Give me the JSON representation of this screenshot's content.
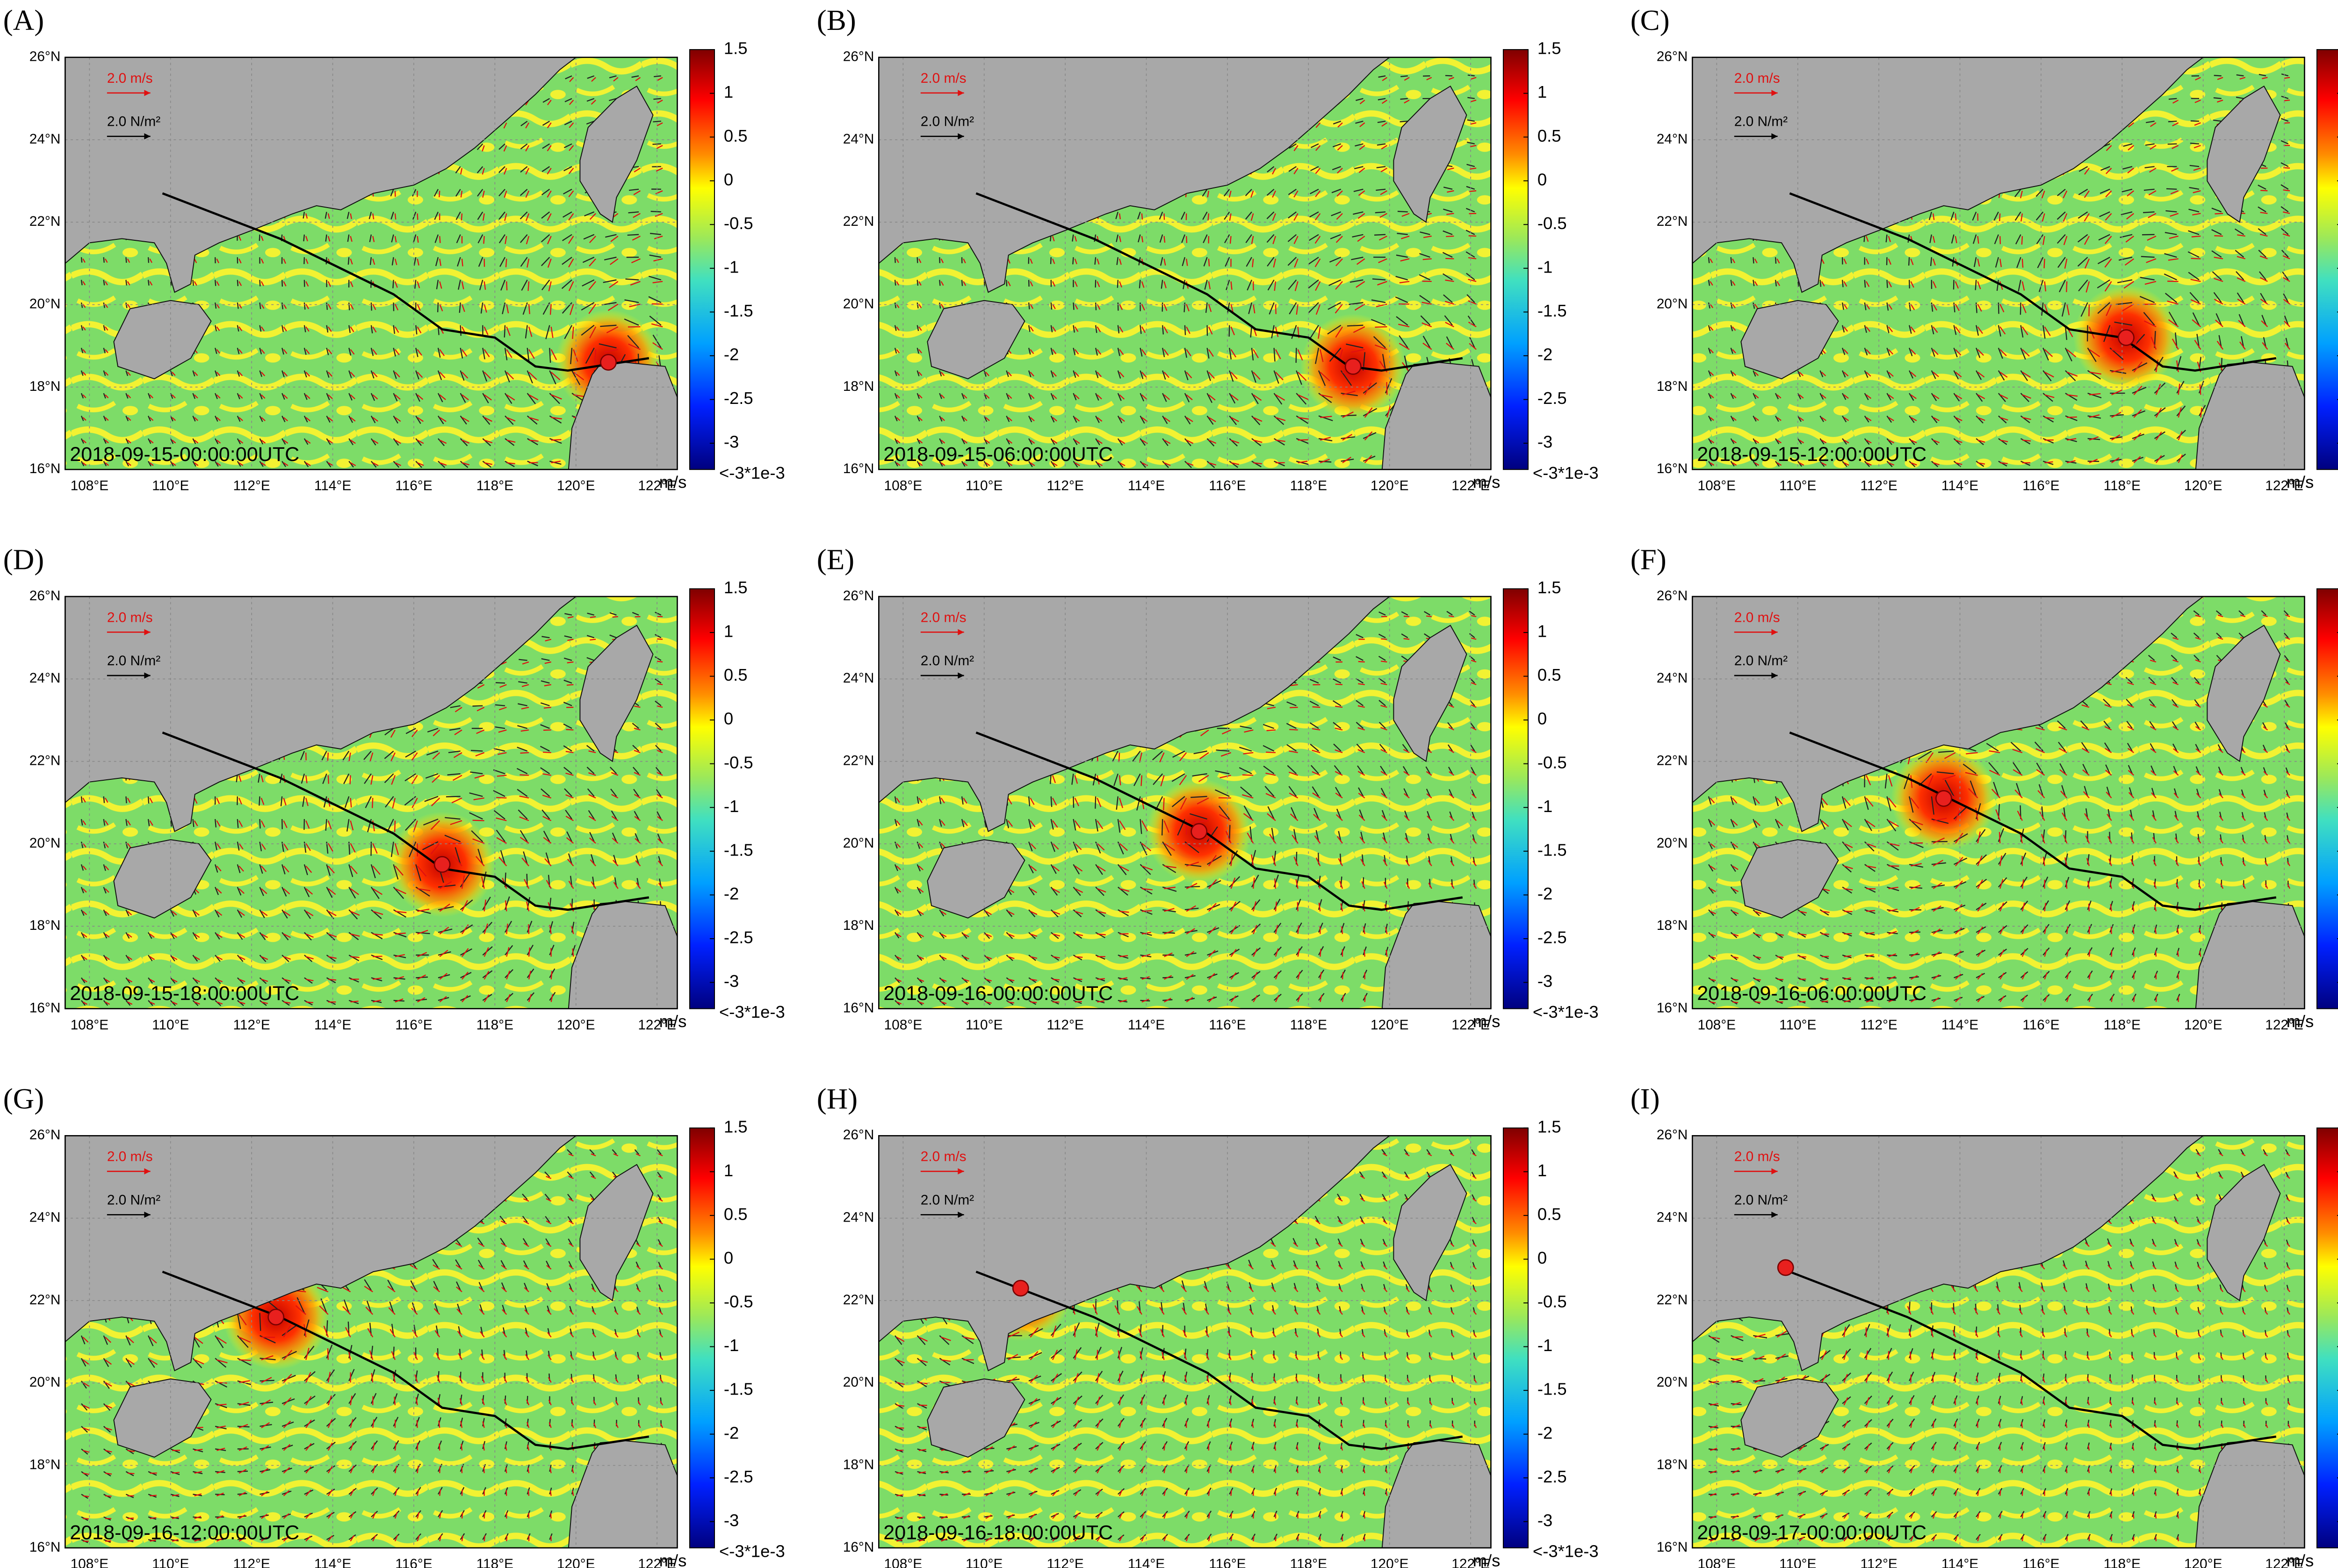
{
  "panels": [
    {
      "label": "(A)",
      "time": "2018-09-15-00:00:00UTC",
      "storm": {
        "lon": 120.8,
        "lat": 18.6
      }
    },
    {
      "label": "(B)",
      "time": "2018-09-15-06:00:00UTC",
      "storm": {
        "lon": 119.1,
        "lat": 18.5
      }
    },
    {
      "label": "(C)",
      "time": "2018-09-15-12:00:00UTC",
      "storm": {
        "lon": 118.1,
        "lat": 19.2
      }
    },
    {
      "label": "(D)",
      "time": "2018-09-15-18:00:00UTC",
      "storm": {
        "lon": 116.7,
        "lat": 19.5
      }
    },
    {
      "label": "(E)",
      "time": "2018-09-16-00:00:00UTC",
      "storm": {
        "lon": 115.3,
        "lat": 20.3
      }
    },
    {
      "label": "(F)",
      "time": "2018-09-16-06:00:00UTC",
      "storm": {
        "lon": 113.6,
        "lat": 21.1
      }
    },
    {
      "label": "(G)",
      "time": "2018-09-16-12:00:00UTC",
      "storm": {
        "lon": 112.6,
        "lat": 21.6
      }
    },
    {
      "label": "(H)",
      "time": "2018-09-16-18:00:00UTC",
      "storm": {
        "lon": 110.9,
        "lat": 22.3
      }
    },
    {
      "label": "(I)",
      "time": "2018-09-17-00:00:00UTC",
      "storm": {
        "lon": 109.7,
        "lat": 22.8
      }
    }
  ],
  "map": {
    "xlim": [
      107.4,
      122.5
    ],
    "ylim": [
      16,
      26
    ],
    "xticks": [
      {
        "value": 108,
        "label": "108°E"
      },
      {
        "value": 110,
        "label": "110°E"
      },
      {
        "value": 112,
        "label": "112°E"
      },
      {
        "value": 114,
        "label": "114°E"
      },
      {
        "value": 116,
        "label": "116°E"
      },
      {
        "value": 118,
        "label": "118°E"
      },
      {
        "value": 120,
        "label": "120°E"
      },
      {
        "value": 122,
        "label": "122°E"
      }
    ],
    "yticks": [
      {
        "value": 16,
        "label": "16°N"
      },
      {
        "value": 18,
        "label": "18°N"
      },
      {
        "value": 20,
        "label": "20°N"
      },
      {
        "value": 22,
        "label": "22°N"
      },
      {
        "value": 24,
        "label": "24°N"
      },
      {
        "value": 26,
        "label": "26°N"
      }
    ]
  },
  "track": {
    "lon": [
      109.8,
      112.7,
      115.5,
      116.7,
      118.0,
      119.0,
      119.8,
      121.8
    ],
    "lat": [
      22.7,
      21.6,
      20.25,
      19.4,
      19.2,
      18.5,
      18.4,
      18.7
    ]
  },
  "colorbar": {
    "ylim": [
      -3.3,
      1.5
    ],
    "ticks": [
      1.5,
      1,
      0.5,
      0,
      -0.5,
      -1,
      -1.5,
      -2,
      -2.5,
      -3
    ],
    "bottom_label": "<-3*1e-3",
    "unit": "m/s"
  },
  "legend": {
    "current": "2.0 m/s",
    "stress": "2.0 N/m²"
  }
}
